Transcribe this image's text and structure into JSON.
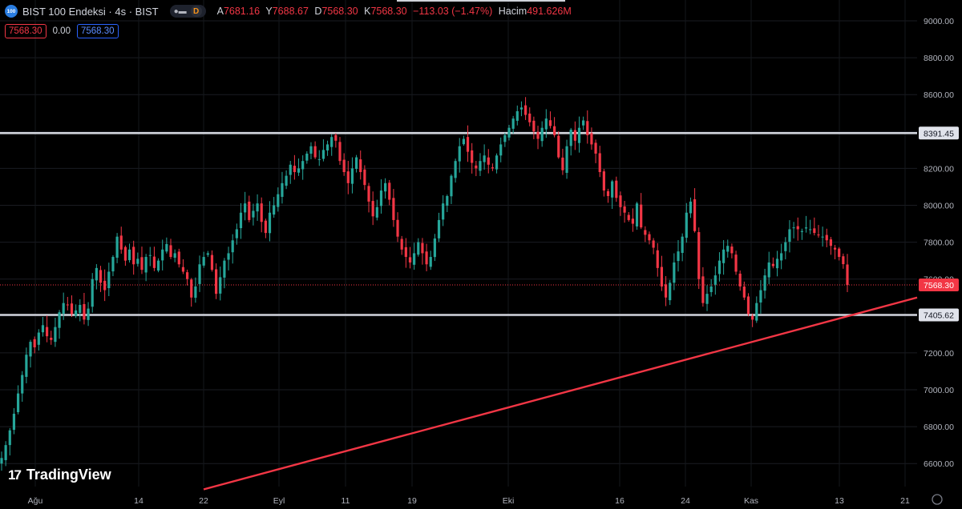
{
  "symbol": {
    "icon_text": "100",
    "title": "BIST 100 Endeksi · 4s · BIST",
    "more_icon": "dots-icon",
    "delay_badge": "D"
  },
  "ohlc": {
    "open_label": "A",
    "open": "7681.16",
    "high_label": "Y",
    "high": "7688.67",
    "low_label": "D",
    "low": "7568.30",
    "close_label": "K",
    "close": "7568.30",
    "change": "−113.03 (−1.47%)",
    "volume_label": "Hacim",
    "volume": "491.626M"
  },
  "order": {
    "sell_price": "7568.30",
    "spread": "0.00",
    "buy_price": "7568.30"
  },
  "branding": {
    "logo_text": "TradingView"
  },
  "colors": {
    "background": "#000000",
    "up": "#26a69a",
    "down": "#f23645",
    "horizontal_line": "#d1d4dc",
    "trendline": "#f23645",
    "axis_text": "#b2b5be"
  },
  "chart_data": {
    "type": "candlestick",
    "title": "",
    "xlabel": "",
    "ylabel": "",
    "ylim": [
      6550,
      9050
    ],
    "grid": true,
    "x_ticks": [
      "Ağu",
      "14",
      "22",
      "Eyl",
      "11",
      "19",
      "Eki",
      "16",
      "24",
      "Kas",
      "13",
      "21"
    ],
    "y_ticks": [
      "9000.00",
      "8800.00",
      "8600.00",
      "8400.00",
      "8200.00",
      "8000.00",
      "7800.00",
      "7600.00",
      "7400.00",
      "7200.00",
      "7000.00",
      "6800.00",
      "6600.00"
    ],
    "last_price": 7568.3,
    "last_price_label": "7568.30",
    "horizontal_lines": [
      {
        "value": 8391.45,
        "label": "8391.45"
      },
      {
        "value": 7405.62,
        "label": "7405.62"
      }
    ],
    "trendline": {
      "start": {
        "x": "22",
        "y": 6460
      },
      "end": {
        "x": "after 13",
        "y": 7500
      }
    },
    "closes": [
      6630,
      6700,
      6780,
      6870,
      6980,
      7080,
      7190,
      7260,
      7230,
      7310,
      7350,
      7290,
      7270,
      7340,
      7420,
      7470,
      7460,
      7410,
      7430,
      7460,
      7380,
      7440,
      7600,
      7660,
      7580,
      7540,
      7640,
      7720,
      7830,
      7760,
      7700,
      7760,
      7680,
      7710,
      7650,
      7720,
      7730,
      7660,
      7700,
      7760,
      7790,
      7720,
      7740,
      7680,
      7640,
      7600,
      7500,
      7560,
      7680,
      7720,
      7740,
      7650,
      7520,
      7610,
      7700,
      7740,
      7810,
      7870,
      7960,
      8010,
      7920,
      7970,
      8010,
      7910,
      7850,
      7960,
      8000,
      8060,
      8120,
      8160,
      8220,
      8180,
      8200,
      8240,
      8280,
      8320,
      8260,
      8250,
      8300,
      8330,
      8370,
      8350,
      8240,
      8180,
      8120,
      8200,
      8260,
      8180,
      8110,
      8020,
      7940,
      7990,
      8080,
      8120,
      8030,
      7920,
      7830,
      7760,
      7720,
      7690,
      7740,
      7800,
      7740,
      7680,
      7720,
      7820,
      7920,
      8010,
      8050,
      8160,
      8240,
      8320,
      8360,
      8290,
      8230,
      8200,
      8240,
      8270,
      8220,
      8200,
      8270,
      8330,
      8380,
      8420,
      8470,
      8510,
      8530,
      8490,
      8450,
      8400,
      8360,
      8420,
      8470,
      8430,
      8380,
      8260,
      8190,
      8320,
      8410,
      8350,
      8420,
      8460,
      8380,
      8330,
      8280,
      8180,
      8080,
      8050,
      8130,
      8040,
      7990,
      7960,
      7920,
      7900,
      8010,
      7880,
      7840,
      7810,
      7770,
      7660,
      7560,
      7500,
      7580,
      7690,
      7750,
      7830,
      7960,
      8020,
      7860,
      7600,
      7470,
      7520,
      7560,
      7620,
      7700,
      7760,
      7780,
      7740,
      7640,
      7560,
      7500,
      7410,
      7380,
      7470,
      7540,
      7620,
      7690,
      7670,
      7710,
      7740,
      7800,
      7870,
      7880,
      7870,
      7860,
      7880,
      7870,
      7850,
      7840,
      7830,
      7810,
      7780,
      7760,
      7720,
      7681,
      7568
    ]
  }
}
